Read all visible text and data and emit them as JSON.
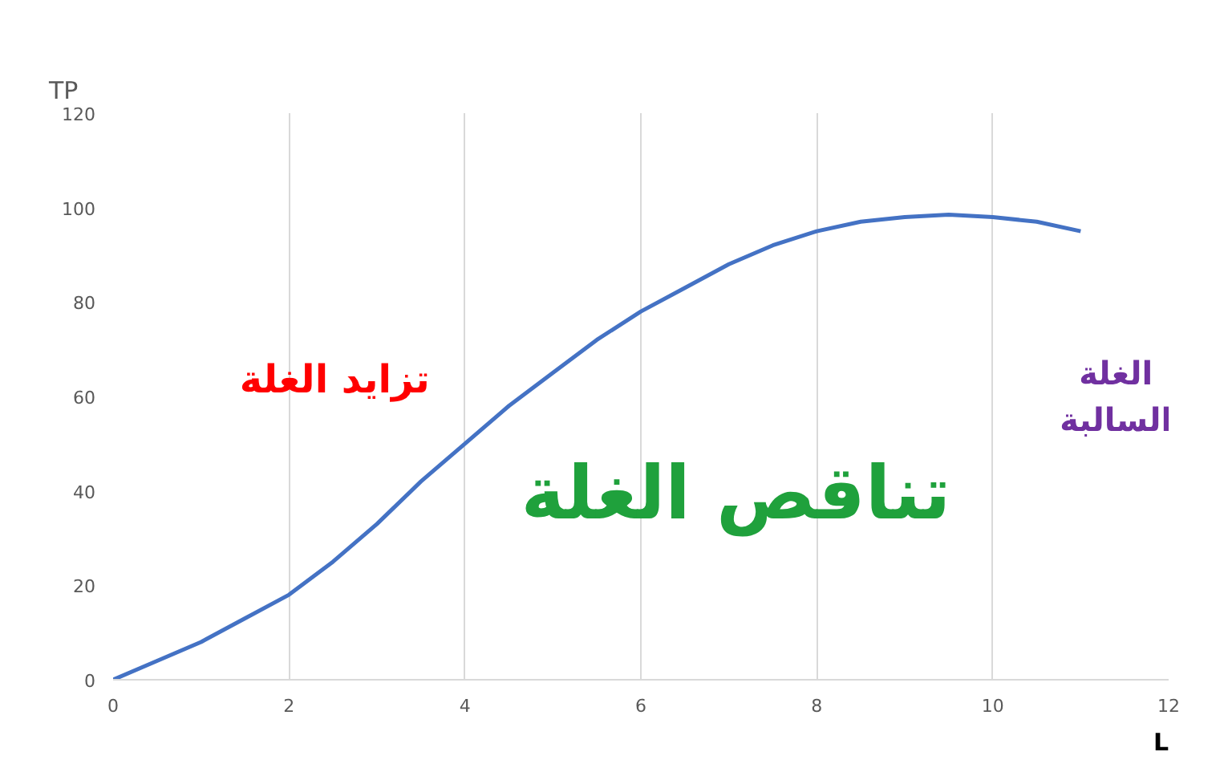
{
  "chart_data": {
    "type": "line",
    "ylabel": "TP",
    "xlabel": "L",
    "x": [
      0,
      0.5,
      1,
      1.5,
      2,
      2.5,
      3,
      3.5,
      4,
      4.5,
      5,
      5.5,
      6,
      6.5,
      7,
      7.5,
      8,
      8.5,
      9,
      9.5,
      10,
      10.5,
      11
    ],
    "series": [
      {
        "color": "#4472c4",
        "values": [
          0,
          4,
          8,
          13,
          18,
          25,
          33,
          42,
          50,
          58,
          65,
          72,
          78,
          83,
          88,
          92,
          95,
          97,
          98,
          98.5,
          98,
          97,
          95
        ]
      }
    ],
    "xlim": [
      0,
      12
    ],
    "xticks": [
      0,
      2,
      4,
      6,
      8,
      10,
      12
    ],
    "ylim": [
      0,
      120
    ],
    "yticks": [
      0,
      20,
      40,
      60,
      80,
      100,
      120
    ],
    "grid": "x",
    "marker": "none",
    "line_style": "solid",
    "annotations": [
      "تزايد الغلة",
      "تناقص الغلة",
      "الغلة\nالسالبة"
    ]
  }
}
